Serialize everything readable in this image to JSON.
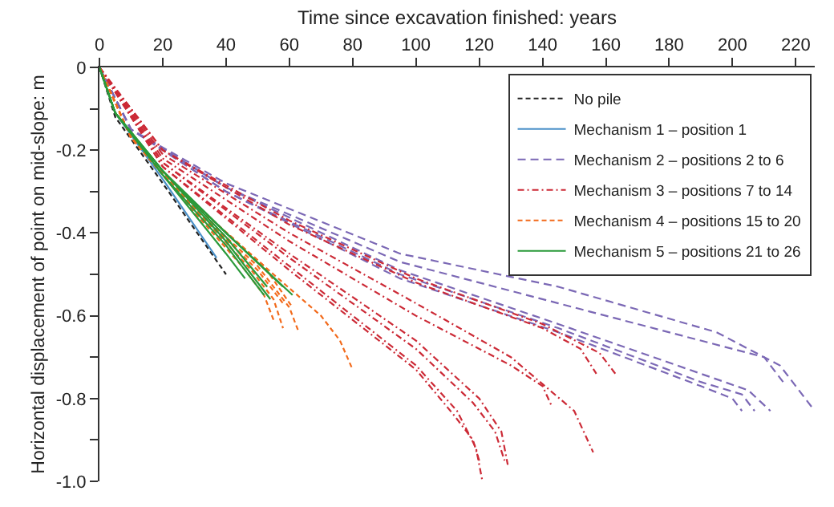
{
  "chart_data": {
    "type": "line",
    "xlabel": "Time since excavation finished: years",
    "ylabel": "Horizontal displacement of point on mid-slope: m",
    "xlim": [
      0,
      226
    ],
    "xticks": [
      0,
      20,
      40,
      60,
      80,
      100,
      120,
      140,
      160,
      180,
      200,
      220
    ],
    "ylim": [
      -1.0,
      0
    ],
    "yticks": [
      0,
      {
        "value": -0.1,
        "label": null
      },
      -0.2,
      {
        "value": -0.3,
        "label": null
      },
      -0.4,
      {
        "value": -0.5,
        "label": null
      },
      -0.6,
      {
        "value": -0.7,
        "label": null
      },
      -0.8,
      {
        "value": -0.9,
        "label": null
      },
      {
        "value": -1.0,
        "label": "-1.0"
      }
    ],
    "grid": false,
    "legend": "top right",
    "marker": "none",
    "series": [
      {
        "name": "No pile",
        "color": "#222222",
        "line_style": "dashed",
        "x": [
          0,
          5,
          20,
          40
        ],
        "values": [
          0,
          -0.12,
          -0.28,
          -0.5
        ]
      },
      {
        "name": "Mechanism 1 – position 1",
        "color": "#4a90c8",
        "line_style": "solid",
        "x": [
          0,
          5,
          20,
          37
        ],
        "values": [
          0,
          -0.11,
          -0.27,
          -0.46
        ]
      },
      {
        "name": "Mechanism 2 – positions 2 to 6",
        "color": "#7b68b5",
        "line_style": "longdash",
        "x": [
          0,
          10,
          40,
          95,
          145,
          195,
          215,
          225
        ],
        "values": [
          0,
          -0.15,
          -0.28,
          -0.45,
          -0.53,
          -0.64,
          -0.72,
          -0.82
        ]
      },
      {
        "color": "#7b68b5",
        "line_style": "longdash",
        "x": [
          0,
          10,
          40,
          95,
          145,
          190,
          210,
          216
        ],
        "values": [
          0,
          -0.15,
          -0.29,
          -0.47,
          -0.57,
          -0.66,
          -0.7,
          -0.76
        ]
      },
      {
        "color": "#7b68b5",
        "line_style": "longdash",
        "x": [
          0,
          10,
          40,
          95,
          145,
          190,
          205,
          212
        ],
        "values": [
          0,
          -0.15,
          -0.29,
          -0.49,
          -0.62,
          -0.74,
          -0.78,
          -0.83
        ]
      },
      {
        "color": "#7b68b5",
        "line_style": "longdash",
        "x": [
          0,
          10,
          40,
          95,
          145,
          190,
          203,
          207
        ],
        "values": [
          0,
          -0.15,
          -0.3,
          -0.5,
          -0.63,
          -0.76,
          -0.79,
          -0.83
        ]
      },
      {
        "color": "#7b68b5",
        "line_style": "longdash",
        "x": [
          0,
          10,
          40,
          95,
          145,
          190,
          200,
          203
        ],
        "values": [
          0,
          -0.15,
          -0.3,
          -0.51,
          -0.64,
          -0.77,
          -0.8,
          -0.83
        ]
      },
      {
        "name": "Mechanism 3 – positions 7 to 14",
        "color": "#cc2a36",
        "line_style": "dashdot",
        "x": [
          0,
          20,
          60,
          100,
          140,
          152,
          157
        ],
        "values": [
          0,
          -0.2,
          -0.38,
          -0.52,
          -0.63,
          -0.68,
          -0.74
        ]
      },
      {
        "color": "#cc2a36",
        "line_style": "dashdot",
        "x": [
          0,
          20,
          60,
          100,
          140,
          158,
          163
        ],
        "values": [
          0,
          -0.2,
          -0.37,
          -0.51,
          -0.62,
          -0.69,
          -0.74
        ]
      },
      {
        "color": "#cc2a36",
        "line_style": "dashdot",
        "x": [
          0,
          20,
          60,
          100,
          130,
          140,
          143
        ],
        "values": [
          0,
          -0.22,
          -0.42,
          -0.6,
          -0.72,
          -0.77,
          -0.82
        ]
      },
      {
        "color": "#cc2a36",
        "line_style": "dashdot",
        "x": [
          0,
          20,
          60,
          100,
          130,
          150,
          156
        ],
        "values": [
          0,
          -0.21,
          -0.4,
          -0.57,
          -0.7,
          -0.83,
          -0.93
        ]
      },
      {
        "color": "#cc2a36",
        "line_style": "dashdot",
        "x": [
          0,
          20,
          60,
          100,
          120,
          127,
          129
        ],
        "values": [
          0,
          -0.23,
          -0.45,
          -0.66,
          -0.8,
          -0.88,
          -0.96
        ]
      },
      {
        "color": "#cc2a36",
        "line_style": "dashdot",
        "x": [
          0,
          20,
          60,
          100,
          118,
          125,
          128
        ],
        "values": [
          0,
          -0.23,
          -0.46,
          -0.68,
          -0.81,
          -0.88,
          -0.95
        ]
      },
      {
        "color": "#cc2a36",
        "line_style": "dashdot",
        "x": [
          0,
          20,
          60,
          100,
          113,
          119,
          121
        ],
        "values": [
          0,
          -0.24,
          -0.48,
          -0.72,
          -0.83,
          -0.92,
          -1.0
        ]
      },
      {
        "color": "#cc2a36",
        "line_style": "dashdot",
        "x": [
          0,
          20,
          60,
          100,
          112,
          118,
          120
        ],
        "values": [
          0,
          -0.24,
          -0.49,
          -0.73,
          -0.84,
          -0.9,
          -0.95
        ]
      },
      {
        "name": "Mechanism 4 – positions 15 to 20",
        "color": "#f26a1b",
        "line_style": "dashed",
        "x": [
          0,
          10,
          30,
          45,
          52,
          55
        ],
        "values": [
          0,
          -0.17,
          -0.35,
          -0.48,
          -0.55,
          -0.61
        ]
      },
      {
        "color": "#f26a1b",
        "line_style": "dashed",
        "x": [
          0,
          10,
          30,
          48,
          55,
          58
        ],
        "values": [
          0,
          -0.17,
          -0.34,
          -0.49,
          -0.56,
          -0.63
        ]
      },
      {
        "color": "#f26a1b",
        "line_style": "dashed",
        "x": [
          0,
          10,
          30,
          50,
          60,
          63
        ],
        "values": [
          0,
          -0.17,
          -0.34,
          -0.48,
          -0.58,
          -0.64
        ]
      },
      {
        "color": "#f26a1b",
        "line_style": "dashed",
        "x": [
          0,
          10,
          30,
          55,
          70,
          76,
          80
        ],
        "values": [
          0,
          -0.17,
          -0.33,
          -0.5,
          -0.6,
          -0.66,
          -0.73
        ]
      },
      {
        "color": "#f26a1b",
        "line_style": "dashed",
        "x": [
          0,
          10,
          30,
          50,
          58
        ],
        "values": [
          0,
          -0.17,
          -0.34,
          -0.49,
          -0.57
        ]
      },
      {
        "color": "#f26a1b",
        "line_style": "dashed",
        "x": [
          0,
          10,
          30,
          52,
          61
        ],
        "values": [
          0,
          -0.17,
          -0.33,
          -0.48,
          -0.58
        ]
      },
      {
        "name": "Mechanism 5 – positions 21 to 26",
        "color": "#2a9a3a",
        "line_style": "solid",
        "x": [
          0,
          5,
          20,
          40,
          46
        ],
        "values": [
          0,
          -0.11,
          -0.26,
          -0.45,
          -0.51
        ]
      },
      {
        "color": "#2a9a3a",
        "line_style": "solid",
        "x": [
          0,
          5,
          20,
          40,
          52
        ],
        "values": [
          0,
          -0.11,
          -0.26,
          -0.43,
          -0.55
        ]
      },
      {
        "color": "#2a9a3a",
        "line_style": "solid",
        "x": [
          0,
          5,
          20,
          40,
          54
        ],
        "values": [
          0,
          -0.11,
          -0.25,
          -0.42,
          -0.56
        ]
      },
      {
        "color": "#2a9a3a",
        "line_style": "solid",
        "x": [
          0,
          5,
          20,
          40,
          53
        ],
        "values": [
          0,
          -0.11,
          -0.25,
          -0.41,
          -0.53
        ]
      },
      {
        "color": "#2a9a3a",
        "line_style": "solid",
        "x": [
          0,
          5,
          20,
          40,
          61
        ],
        "values": [
          0,
          -0.11,
          -0.25,
          -0.4,
          -0.55
        ]
      },
      {
        "color": "#2a9a3a",
        "line_style": "solid",
        "x": [
          0,
          5,
          20,
          40,
          58
        ],
        "values": [
          0,
          -0.11,
          -0.25,
          -0.4,
          -0.53
        ]
      }
    ]
  }
}
